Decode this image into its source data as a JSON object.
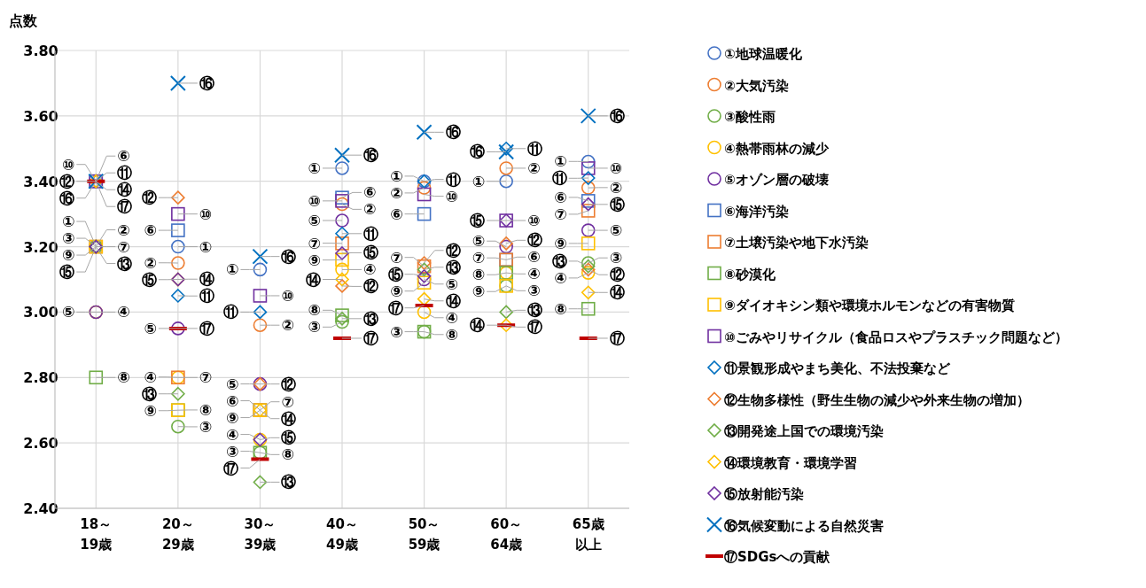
{
  "chart_data": {
    "type": "scatter",
    "ylabel": "点数",
    "categories": [
      "18～19歳",
      "20～29歳",
      "30～39歳",
      "40～49歳",
      "50～59歳",
      "60～64歳",
      "65歳以上"
    ],
    "ylim": [
      2.4,
      3.8
    ],
    "yticks": [
      {
        "value": 2.4,
        "label": "2.40"
      },
      {
        "value": 2.6,
        "label": "2.60"
      },
      {
        "value": 2.8,
        "label": "2.80"
      },
      {
        "value": 3.0,
        "label": "3.00"
      },
      {
        "value": 3.2,
        "label": "3.20"
      },
      {
        "value": 3.4,
        "label": "3.40"
      },
      {
        "value": 3.6,
        "label": "3.60"
      },
      {
        "value": 3.8,
        "label": "3.80"
      }
    ],
    "grid": true,
    "legend": "right",
    "series": [
      {
        "name": "①地球温暖化",
        "color": "#4472c4",
        "marker": "circle",
        "values": [
          3.2,
          3.2,
          3.13,
          3.44,
          3.4,
          3.4,
          3.46
        ],
        "value_labels": [
          "①",
          "①",
          "①",
          "①",
          "①",
          "①",
          "①"
        ]
      },
      {
        "name": "②大気汚染",
        "color": "#ed7d31",
        "marker": "circle",
        "values": [
          3.2,
          3.15,
          2.96,
          3.33,
          3.38,
          3.44,
          3.38
        ],
        "value_labels": [
          "②",
          "②",
          "②",
          "②",
          "②",
          "②",
          "②"
        ]
      },
      {
        "name": "③酸性雨",
        "color": "#70ad47",
        "marker": "circle",
        "values": [
          3.2,
          2.65,
          2.57,
          2.97,
          2.94,
          3.08,
          3.15
        ],
        "value_labels": [
          "③",
          "③",
          "③",
          "③",
          "③",
          "③",
          "③"
        ]
      },
      {
        "name": "④熱帯雨林の減少",
        "color": "#ffc000",
        "marker": "circle",
        "values": [
          3.0,
          2.8,
          2.61,
          3.13,
          3.0,
          3.12,
          3.12
        ],
        "value_labels": [
          "④",
          "④",
          "④",
          "④",
          "④",
          "④",
          "④"
        ]
      },
      {
        "name": "⑤オゾン層の破壊",
        "color": "#7030a0",
        "marker": "circle",
        "values": [
          3.0,
          2.95,
          2.78,
          3.28,
          3.1,
          3.2,
          3.25
        ],
        "value_labels": [
          "⑤",
          "⑤",
          "⑤",
          "⑤",
          "⑤",
          "⑤",
          "⑤"
        ]
      },
      {
        "name": "⑥海洋汚染",
        "color": "#4472c4",
        "marker": "square",
        "values": [
          3.4,
          3.25,
          2.7,
          3.35,
          3.3,
          3.16,
          3.34
        ],
        "value_labels": [
          "⑥",
          "⑥",
          "⑥",
          "⑥",
          "⑥",
          "⑥",
          "⑥"
        ]
      },
      {
        "name": "⑦土壌汚染や地下水汚染",
        "color": "#ed7d31",
        "marker": "square",
        "values": [
          3.2,
          2.8,
          2.7,
          3.21,
          3.14,
          3.16,
          3.31
        ],
        "value_labels": [
          "⑦",
          "⑦",
          "⑦",
          "⑦",
          "⑦",
          "⑦",
          "⑦"
        ]
      },
      {
        "name": "⑧砂漠化",
        "color": "#70ad47",
        "marker": "square",
        "values": [
          2.8,
          2.7,
          2.57,
          2.99,
          2.94,
          3.12,
          3.01
        ],
        "value_labels": [
          "⑧",
          "⑧",
          "⑧",
          "⑧",
          "⑧",
          "⑧",
          "⑧"
        ]
      },
      {
        "name": "⑨ダイオキシン類や環境ホルモンなどの有害物質",
        "color": "#ffc000",
        "marker": "square",
        "values": [
          3.2,
          2.7,
          2.7,
          3.16,
          3.09,
          3.08,
          3.21
        ],
        "value_labels": [
          "⑨",
          "⑨",
          "⑨",
          "⑨",
          "⑨",
          "⑨",
          "⑨"
        ]
      },
      {
        "name": "⑩ごみやリサイクル（食品ロスやプラスチック問題など）",
        "color": "#7030a0",
        "marker": "square",
        "values": [
          3.4,
          3.3,
          3.05,
          3.34,
          3.36,
          3.28,
          3.44
        ],
        "value_labels": [
          "⑩",
          "⑩",
          "⑩",
          "⑩",
          "⑩",
          "⑩",
          "⑩"
        ]
      },
      {
        "name": "⑪景観形成やまち美化、不法投棄など",
        "color": "#0070c0",
        "marker": "diamond",
        "values": [
          3.4,
          3.05,
          3.0,
          3.24,
          3.4,
          3.5,
          3.41
        ],
        "value_labels": [
          "⑪",
          "⑪",
          "⑪",
          "⑪",
          "⑪",
          "⑪",
          "⑪"
        ]
      },
      {
        "name": "⑫生物多様性（野生生物の減少や外来生物の増加）",
        "color": "#ed7d31",
        "marker": "diamond",
        "values": [
          3.4,
          3.35,
          2.78,
          3.08,
          3.15,
          3.21,
          3.13
        ],
        "value_labels": [
          "⑫",
          "⑫",
          "⑫",
          "⑫",
          "⑫",
          "⑫",
          "⑫"
        ]
      },
      {
        "name": "⑬開発途上国での環境汚染",
        "color": "#70ad47",
        "marker": "diamond",
        "values": [
          3.2,
          2.75,
          2.48,
          2.98,
          3.13,
          3.0,
          3.14
        ],
        "value_labels": [
          "⑬",
          "⑬",
          "⑬",
          "⑬",
          "⑬",
          "⑬",
          "⑬"
        ]
      },
      {
        "name": "⑭環境教育・環境学習",
        "color": "#ffc000",
        "marker": "diamond",
        "values": [
          3.4,
          3.1,
          2.7,
          3.1,
          3.04,
          2.96,
          3.06
        ],
        "value_labels": [
          "⑭",
          "⑭",
          "⑭",
          "⑭",
          "⑭",
          "⑭",
          "⑭"
        ]
      },
      {
        "name": "⑮放射能汚染",
        "color": "#7030a0",
        "marker": "diamond",
        "values": [
          3.2,
          3.1,
          2.61,
          3.18,
          3.11,
          3.28,
          3.33
        ],
        "value_labels": [
          "⑮",
          "⑮",
          "⑮",
          "⑮",
          "⑮",
          "⑮",
          "⑮"
        ]
      },
      {
        "name": "⑯気候変動による自然災害",
        "color": "#0070c0",
        "marker": "cross",
        "values": [
          3.4,
          3.7,
          3.17,
          3.48,
          3.55,
          3.49,
          3.6
        ],
        "value_labels": [
          "⑯",
          "⑯",
          "⑯",
          "⑯",
          "⑯",
          "⑯",
          "⑯"
        ]
      },
      {
        "name": "⑰SDGsへの貢献",
        "color": "#c00000",
        "values": [
          3.4,
          2.95,
          2.55,
          2.92,
          3.02,
          2.96,
          2.92
        ],
        "value_labels": [
          "⑰",
          "⑰",
          "⑰",
          "⑰",
          "⑰",
          "⑰",
          "⑰"
        ]
      }
    ]
  }
}
